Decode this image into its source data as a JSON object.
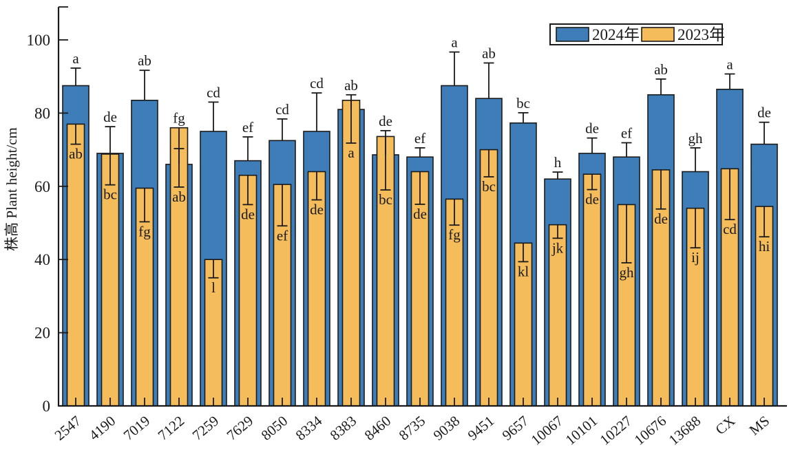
{
  "figure": {
    "background": "#ffffff",
    "text_color": "#1a1a1a"
  },
  "chart_data": {
    "type": "bar",
    "title": "",
    "xlabel": "",
    "ylabel": "株高 Plant height/cm",
    "ylim": [
      0,
      109
    ],
    "yticks": [
      0,
      20,
      40,
      60,
      80,
      100
    ],
    "grid": false,
    "legend": {
      "position": "top-right",
      "border_color": "#1a1a1a",
      "entries": [
        {
          "label": "2024年",
          "color": "#3E7DB7"
        },
        {
          "label": "2023年",
          "color": "#F4BC5B"
        }
      ]
    },
    "bar_edge_color": "#1a1a1a",
    "categories": [
      "2547",
      "4190",
      "7019",
      "7122",
      "7259",
      "7629",
      "8050",
      "8334",
      "8383",
      "8460",
      "8735",
      "9038",
      "9451",
      "9657",
      "10067",
      "10101",
      "10227",
      "10676",
      "13688",
      "CX",
      "MS"
    ],
    "series": [
      {
        "name": "2024年",
        "color": "#3E7DB7",
        "error_direction": "up",
        "values": [
          87.5,
          69.0,
          83.5,
          66.0,
          75.0,
          67.0,
          72.5,
          75.0,
          81.0,
          68.6,
          68.0,
          87.5,
          84.0,
          77.3,
          62.0,
          69.0,
          68.0,
          85.0,
          64.0,
          86.5,
          71.5
        ],
        "errors": [
          4.8,
          7.3,
          8.2,
          4.3,
          8.0,
          6.5,
          5.9,
          10.5,
          4.0,
          6.6,
          2.5,
          9.2,
          9.7,
          2.8,
          1.9,
          4.2,
          3.9,
          4.3,
          6.5,
          4.2,
          6.0
        ],
        "letters": [
          "a",
          "de",
          "ab",
          "fg",
          "cd",
          "ef",
          "cd",
          "cd",
          "ab",
          "de",
          "ef",
          "a",
          "ab",
          "bc",
          "h",
          "de",
          "ef",
          "ab",
          "gh",
          "a",
          "de"
        ]
      },
      {
        "name": "2023年",
        "color": "#F4BC5B",
        "error_direction": "down",
        "values": [
          77.0,
          68.8,
          59.5,
          76.0,
          40.0,
          63.0,
          60.5,
          64.0,
          83.5,
          73.6,
          64.0,
          56.5,
          70.0,
          44.5,
          49.5,
          63.3,
          55.0,
          64.5,
          54.0,
          64.8,
          54.5
        ],
        "errors": [
          5.5,
          8.4,
          9.2,
          16.2,
          5.0,
          8.0,
          11.3,
          7.7,
          11.7,
          14.6,
          8.9,
          7.1,
          7.4,
          5.1,
          3.7,
          4.2,
          15.9,
          10.7,
          10.8,
          13.9,
          8.3
        ],
        "letters": [
          "ab",
          "bc",
          "fg",
          "ab",
          "l",
          "de",
          "ef",
          "de",
          "a",
          "bc",
          "de",
          "fg",
          "bc",
          "kl",
          "jk",
          "de",
          "gh",
          "de",
          "ij",
          "cd",
          "hi"
        ]
      }
    ]
  }
}
